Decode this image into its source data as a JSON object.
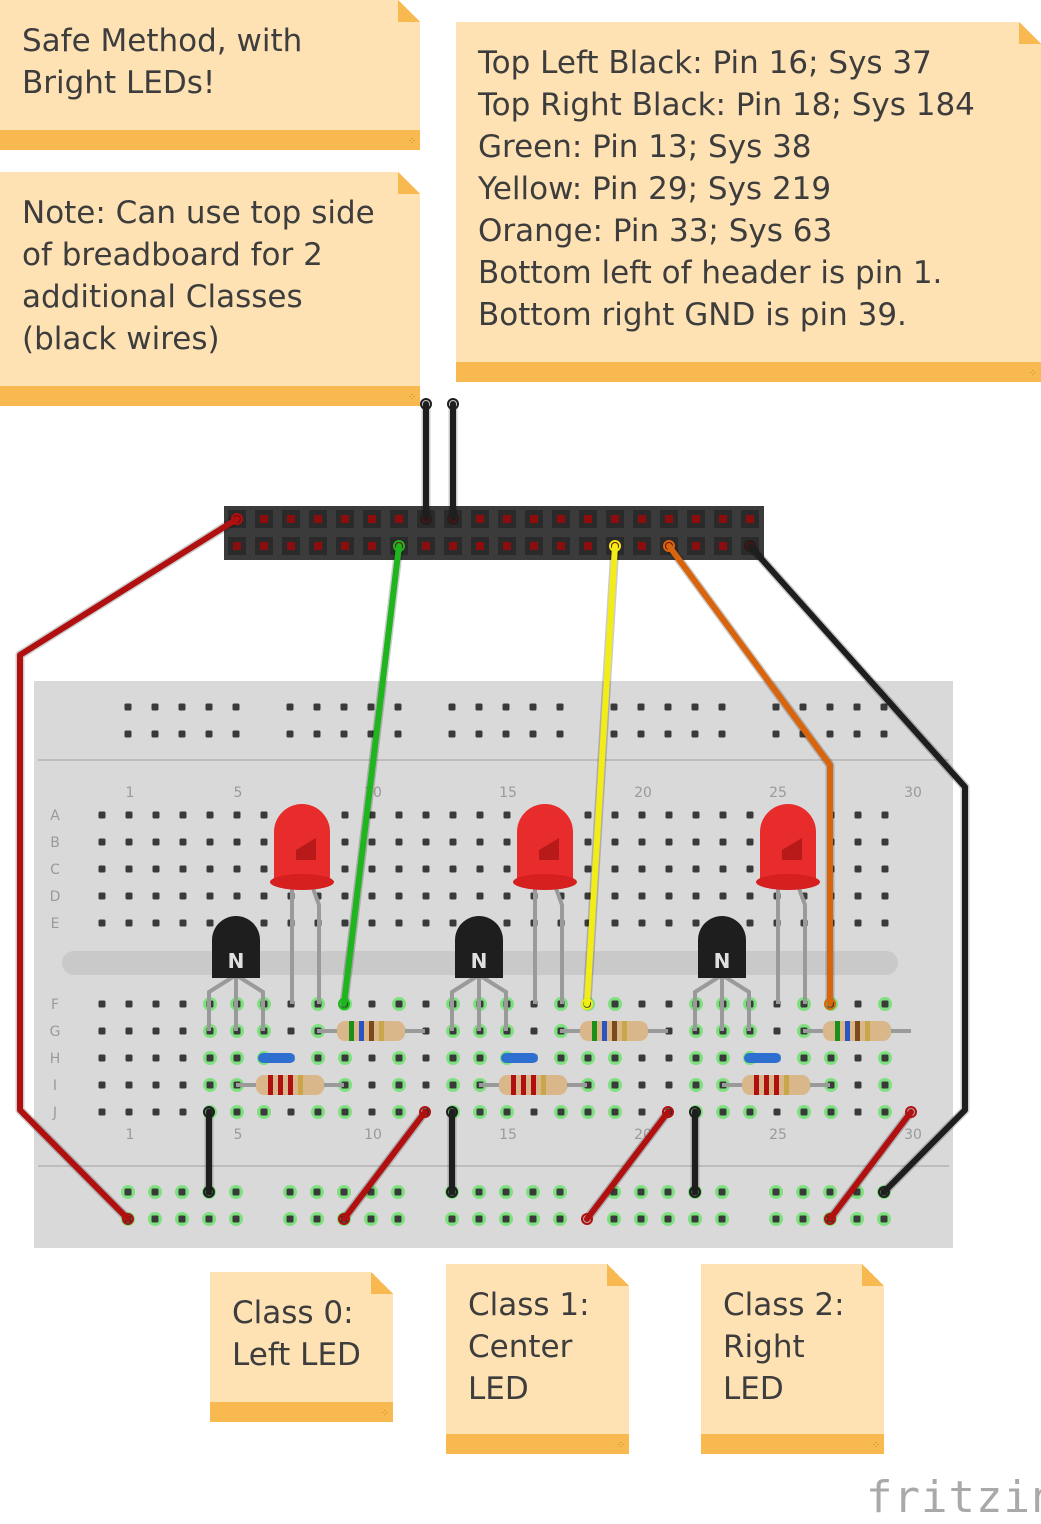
{
  "notes": {
    "safe_method": "Safe Method, with\nBright LEDs!",
    "top_side": "Note: Can use top side\nof breadboard for 2\nadditional Classes\n(black wires)",
    "pins": "Top Left Black: Pin 16; Sys 37\nTop Right Black: Pin 18; Sys 184\nGreen: Pin 13; Sys 38\nYellow: Pin 29; Sys 219\nOrange: Pin 33; Sys 63\nBottom left of header is pin 1.\nBottom right GND is pin 39.",
    "class0": "Class 0:\nLeft LED",
    "class1": "Class 1:\nCenter\nLED",
    "class2": "Class 2:\nRight\nLED"
  },
  "breadboard": {
    "column_numbers": [
      "1",
      "5",
      "10",
      "15",
      "20",
      "25",
      "30"
    ],
    "row_letters_top": [
      "A",
      "B",
      "C",
      "D",
      "E"
    ],
    "row_letters_bottom": [
      "F",
      "G",
      "H",
      "I",
      "J"
    ],
    "transistor_label": "N"
  },
  "wire_colors": {
    "red": "#b0100f",
    "black": "#1e1e1e",
    "green": "#1eb51e",
    "yellow": "#f2ec17",
    "orange": "#d8650d"
  },
  "logo": "fritzing"
}
